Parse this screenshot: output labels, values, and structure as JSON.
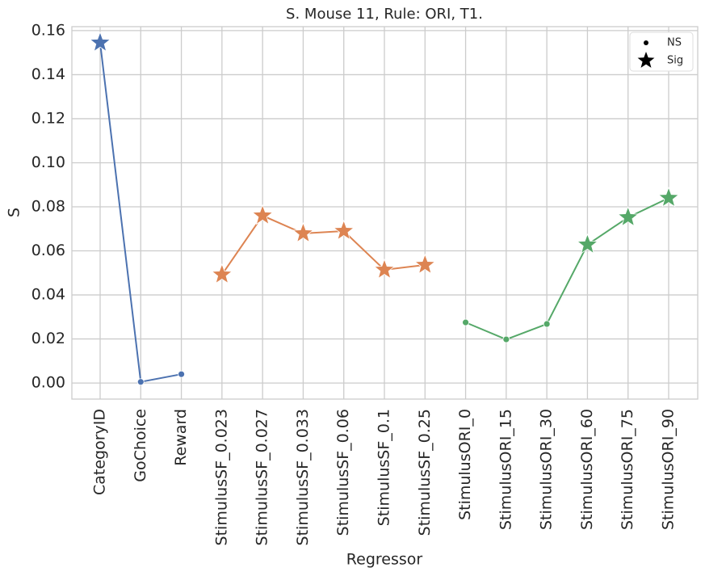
{
  "chart_data": {
    "type": "line",
    "title": "S. Mouse 11, Rule: ORI, T1.",
    "xlabel": "Regressor",
    "ylabel": "S",
    "categories": [
      "CategoryID",
      "GoChoice",
      "Reward",
      "StimulusSF_0.023",
      "StimulusSF_0.027",
      "StimulusSF_0.033",
      "StimulusSF_0.06",
      "StimulusSF_0.1",
      "StimulusSF_0.25",
      "StimulusORI_0",
      "StimulusORI_15",
      "StimulusORI_30",
      "StimulusORI_60",
      "StimulusORI_75",
      "StimulusORI_90"
    ],
    "series": [
      {
        "color": "#4c72b0",
        "values": [
          0.1545,
          0.0005,
          0.004,
          null,
          null,
          null,
          null,
          null,
          null,
          null,
          null,
          null,
          null,
          null,
          null
        ],
        "markers": [
          "star",
          "dot",
          "dot",
          null,
          null,
          null,
          null,
          null,
          null,
          null,
          null,
          null,
          null,
          null,
          null
        ]
      },
      {
        "color": "#dd8452",
        "values": [
          null,
          null,
          null,
          0.0492,
          0.076,
          0.0679,
          0.069,
          0.0514,
          0.0536,
          null,
          null,
          null,
          null,
          null,
          null
        ],
        "markers": [
          null,
          null,
          null,
          "star",
          "star",
          "star",
          "star",
          "star",
          "star",
          null,
          null,
          null,
          null,
          null,
          null
        ]
      },
      {
        "color": "#55a868",
        "values": [
          null,
          null,
          null,
          null,
          null,
          null,
          null,
          null,
          null,
          0.0275,
          0.0198,
          0.0268,
          0.0628,
          0.0752,
          0.084
        ],
        "markers": [
          null,
          null,
          null,
          null,
          null,
          null,
          null,
          null,
          null,
          "dot",
          "dot",
          "dot",
          "star",
          "star",
          "star"
        ]
      }
    ],
    "legend": [
      {
        "name": "NS",
        "marker": "dot"
      },
      {
        "name": "Sig",
        "marker": "star"
      }
    ],
    "legend_position": "upper right",
    "ylim": [
      -0.0073,
      0.1618
    ],
    "yticks": [
      {
        "value": 0,
        "label": "0.00"
      },
      {
        "value": 0.02,
        "label": "0.02"
      },
      {
        "value": 0.04,
        "label": "0.04"
      },
      {
        "value": 0.06,
        "label": "0.06"
      },
      {
        "value": 0.08,
        "label": "0.08"
      },
      {
        "value": 0.1,
        "label": "0.10"
      },
      {
        "value": 0.12,
        "label": "0.12"
      },
      {
        "value": 0.14,
        "label": "0.14"
      },
      {
        "value": 0.16,
        "label": "0.16"
      }
    ],
    "grid": true
  }
}
